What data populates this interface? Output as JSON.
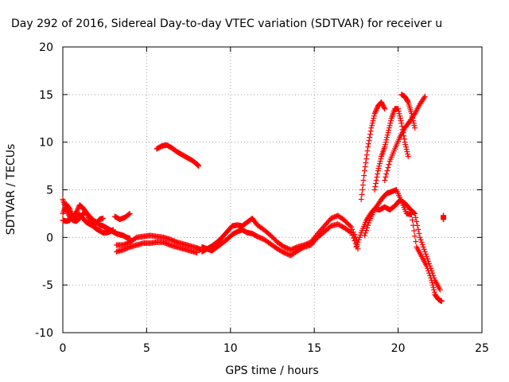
{
  "chart_data": {
    "type": "scatter",
    "title": "Day 292 of 2016, Sidereal Day-to-day VTEC variation (SDTVAR) for receiver u",
    "xlabel": "GPS time / hours",
    "ylabel": "SDTVAR / TECUs",
    "xlim": [
      0,
      25
    ],
    "ylim": [
      -10,
      20
    ],
    "x_ticks": [
      "0",
      "5",
      "10",
      "15",
      "20",
      "25"
    ],
    "y_ticks": [
      "-10",
      "-5",
      "0",
      "5",
      "10",
      "15",
      "20"
    ],
    "grid": true,
    "marker": "plus",
    "color": "#ff0000",
    "series": [
      {
        "x": [
          0.0,
          0.2,
          0.4,
          0.6,
          0.8,
          1.0,
          1.2,
          1.4,
          1.6,
          1.8,
          2.0,
          2.2,
          2.4,
          2.6,
          2.8,
          3.0,
          3.2,
          3.4,
          3.6,
          3.8,
          4.0
        ],
        "y": [
          2.5,
          3.5,
          3.0,
          2.2,
          2.6,
          3.4,
          3.1,
          2.6,
          2.2,
          1.8,
          1.6,
          1.3,
          1.2,
          1.0,
          0.8,
          0.6,
          0.4,
          0.3,
          0.2,
          0.0,
          -0.1
        ]
      },
      {
        "x": [
          0.0,
          0.2,
          0.4,
          0.6,
          0.8,
          1.0,
          1.2,
          1.4,
          1.6,
          1.8,
          2.0,
          2.2,
          2.4,
          2.6,
          2.8,
          3.0
        ],
        "y": [
          4.0,
          3.0,
          2.2,
          1.8,
          1.7,
          2.0,
          2.5,
          2.6,
          1.8,
          1.2,
          0.9,
          0.7,
          0.5,
          0.5,
          0.6,
          0.8
        ]
      },
      {
        "x": [
          0.0,
          0.2,
          0.4,
          0.6,
          0.8,
          1.0,
          1.2,
          1.4,
          1.6,
          1.8,
          2.0,
          2.2,
          2.4
        ],
        "y": [
          1.8,
          1.7,
          1.8,
          2.2,
          1.9,
          2.4,
          2.0,
          1.6,
          1.4,
          1.2,
          1.5,
          1.9,
          2.0
        ]
      },
      {
        "x": [
          3.1,
          3.4,
          3.7,
          4.0
        ],
        "y": [
          2.2,
          1.9,
          2.1,
          2.5
        ]
      },
      {
        "x": [
          3.2,
          3.6,
          4.0,
          4.4,
          4.8,
          5.2,
          5.6,
          6.0,
          6.4,
          6.8,
          7.2,
          7.6,
          8.0,
          8.2
        ],
        "y": [
          -0.8,
          -0.8,
          -0.5,
          0.0,
          0.1,
          0.2,
          0.1,
          0.0,
          -0.2,
          -0.5,
          -0.7,
          -0.9,
          -1.1,
          -1.3
        ]
      },
      {
        "x": [
          3.2,
          3.6,
          4.0,
          4.4,
          4.8,
          5.2,
          5.6,
          6.0,
          6.4,
          6.8,
          7.2,
          7.6,
          8.0
        ],
        "y": [
          -1.5,
          -1.3,
          -1.0,
          -0.8,
          -0.6,
          -0.6,
          -0.5,
          -0.5,
          -0.8,
          -1.0,
          -1.2,
          -1.4,
          -1.6
        ]
      },
      {
        "x": [
          5.6,
          5.9,
          6.2,
          6.5,
          6.8,
          7.1,
          7.4,
          7.7,
          8.0,
          8.1
        ],
        "y": [
          9.3,
          9.6,
          9.7,
          9.4,
          9.0,
          8.7,
          8.4,
          8.1,
          7.7,
          7.5
        ]
      },
      {
        "x": [
          8.3,
          8.6,
          8.9,
          9.2,
          9.5,
          9.8,
          10.1,
          10.4,
          10.7,
          11.0,
          11.3,
          11.6,
          12.0,
          12.4,
          12.8,
          13.2,
          13.6,
          14.0,
          14.4,
          14.8,
          15.2,
          15.6,
          16.0,
          16.4,
          16.8,
          17.2,
          17.6
        ],
        "y": [
          -1.5,
          -1.2,
          -0.9,
          -0.5,
          0.0,
          0.6,
          1.2,
          1.3,
          1.2,
          1.6,
          2.0,
          1.3,
          0.8,
          0.2,
          -0.5,
          -1.0,
          -1.3,
          -1.0,
          -0.8,
          -0.5,
          0.4,
          1.2,
          2.0,
          2.3,
          1.8,
          1.1,
          -0.5
        ]
      },
      {
        "x": [
          8.3,
          8.6,
          8.9,
          9.2,
          9.5,
          9.8,
          10.1,
          10.4,
          10.7,
          11.0,
          11.3,
          11.6,
          12.0,
          12.4,
          12.8,
          13.2,
          13.6,
          14.0,
          14.4,
          14.8,
          15.2,
          15.6,
          16.0,
          16.4,
          16.8,
          17.2,
          17.6
        ],
        "y": [
          -1.0,
          -1.2,
          -1.4,
          -1.0,
          -0.6,
          -0.2,
          0.3,
          0.6,
          0.8,
          0.5,
          0.4,
          0.1,
          -0.2,
          -0.7,
          -1.2,
          -1.6,
          -1.9,
          -1.4,
          -1.0,
          -0.8,
          0.0,
          0.6,
          1.2,
          1.4,
          1.0,
          0.5,
          -1.2
        ]
      },
      {
        "x": [
          17.5,
          17.8,
          18.1,
          18.4,
          18.7,
          19.0,
          19.3,
          19.6,
          19.9,
          20.2,
          20.5,
          20.8,
          21.1,
          21.4,
          21.7,
          22.0,
          22.2,
          22.4,
          22.6
        ],
        "y": [
          -1.0,
          0.5,
          1.8,
          2.6,
          3.2,
          4.0,
          4.6,
          4.8,
          5.0,
          3.8,
          2.5,
          2.4,
          -1.0,
          -2.0,
          -3.0,
          -4.5,
          -6.0,
          -6.5,
          -6.7
        ]
      },
      {
        "x": [
          18.0,
          18.3,
          18.6,
          18.9,
          19.2,
          19.5,
          19.8,
          20.1,
          20.4,
          20.7,
          21.0,
          21.3,
          21.6,
          21.9,
          22.2,
          22.5
        ],
        "y": [
          0.2,
          1.8,
          3.0,
          2.9,
          3.2,
          2.9,
          3.3,
          3.9,
          3.6,
          3.0,
          2.5,
          0.0,
          -1.5,
          -3.0,
          -4.5,
          -5.5
        ]
      },
      {
        "x": [
          17.8,
          18.0,
          18.2,
          18.4,
          18.6,
          18.8,
          19.0,
          19.2
        ],
        "y": [
          4.0,
          7.0,
          9.5,
          11.5,
          13.0,
          13.8,
          14.2,
          13.5
        ]
      },
      {
        "x": [
          18.6,
          18.8,
          19.0,
          19.2,
          19.4,
          19.6,
          19.8,
          20.0,
          20.2,
          20.4,
          20.6
        ],
        "y": [
          5.0,
          7.0,
          8.5,
          9.5,
          11.0,
          12.5,
          13.5,
          13.5,
          12.0,
          10.0,
          8.5
        ]
      },
      {
        "x": [
          19.2,
          19.5,
          19.8,
          20.1,
          20.4,
          20.7,
          21.0,
          21.3,
          21.6
        ],
        "y": [
          6.0,
          8.0,
          9.3,
          10.5,
          11.5,
          12.2,
          13.0,
          14.0,
          14.8
        ]
      },
      {
        "x": [
          20.2,
          20.4,
          20.6,
          20.8,
          21.0
        ],
        "y": [
          15.0,
          14.8,
          14.2,
          13.0,
          11.5
        ]
      },
      {
        "x": [
          22.7,
          22.7,
          22.7
        ],
        "y": [
          2.3,
          2.0,
          1.9
        ]
      }
    ]
  }
}
